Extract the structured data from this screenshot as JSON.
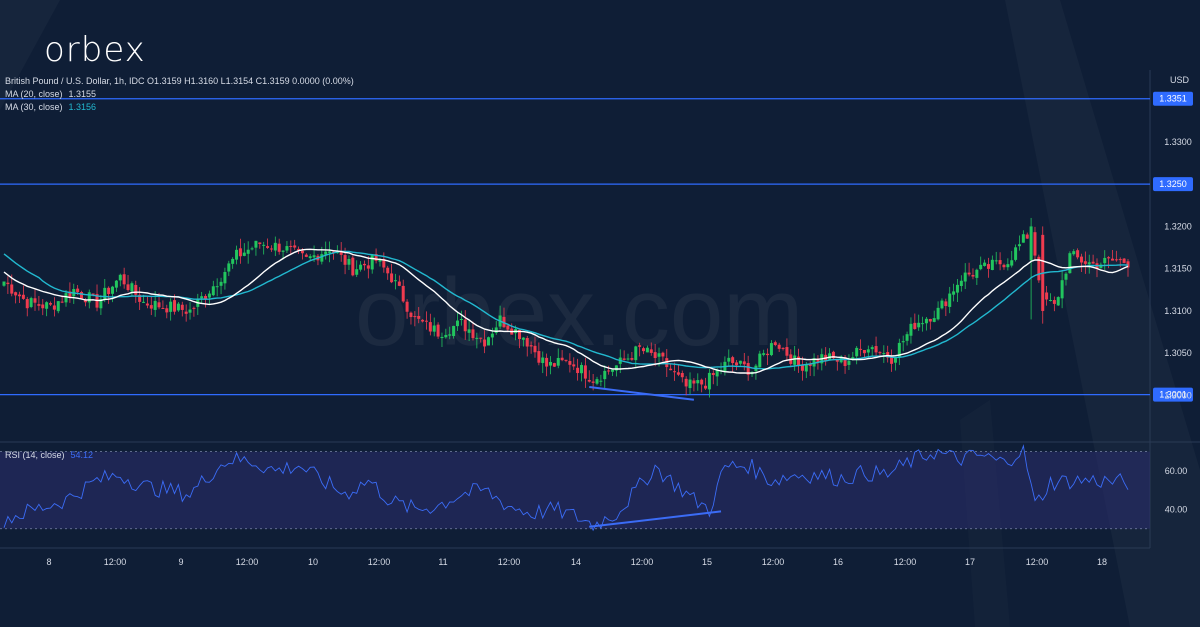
{
  "brand": {
    "logo_text": "orbex",
    "watermark": "orbex.com"
  },
  "colors": {
    "background": "#0f1e36",
    "panel": "#0f1e36",
    "up": "#22c55e",
    "down": "#ef3b4f",
    "ma20": "#ffffff",
    "ma30": "#22b8cf",
    "level_line": "#2f6bff",
    "rsi_line": "#3b6cf6",
    "rsi_band": "#2b2d6e"
  },
  "header": {
    "symbol_line": "British Pound / U.S. Dollar, 1h, IDC  O1.3159  H1.3160  L1.3154  C1.3159  0.0000 (0.00%)",
    "ma20_label": "MA (20, close)",
    "ma20_value": "1.3155",
    "ma30_label": "MA (30, close)",
    "ma30_value": "1.3156"
  },
  "chart_data": [
    {
      "type": "candlestick",
      "title": "British Pound / U.S. Dollar, 1h, IDC",
      "currency_label": "USD",
      "ylim": [
        1.2945,
        1.3385
      ],
      "y_ticks": [
        1.3,
        1.305,
        1.31,
        1.315,
        1.32,
        1.33
      ],
      "y_tick_labels": [
        "1.3000",
        "1.3050",
        "1.3100",
        "1.3150",
        "1.3200",
        "1.3300"
      ],
      "x_tick_labels": [
        "8",
        "12:00",
        "9",
        "12:00",
        "10",
        "12:00",
        "11",
        "12:00",
        "14",
        "12:00",
        "15",
        "12:00",
        "16",
        "12:00",
        "17",
        "12:00",
        "18"
      ],
      "levels": [
        {
          "value": 1.3351,
          "label": "1.3351"
        },
        {
          "value": 1.325,
          "label": "1.3250"
        },
        {
          "value": 1.3001,
          "label": "1.3001"
        }
      ],
      "close_anchors": [
        [
          0,
          1.3135
        ],
        [
          6,
          1.311
        ],
        [
          12,
          1.3105
        ],
        [
          18,
          1.3125
        ],
        [
          24,
          1.311
        ],
        [
          30,
          1.314
        ],
        [
          36,
          1.311
        ],
        [
          42,
          1.3105
        ],
        [
          48,
          1.31
        ],
        [
          54,
          1.313
        ],
        [
          60,
          1.3165
        ],
        [
          66,
          1.318
        ],
        [
          72,
          1.3175
        ],
        [
          78,
          1.316
        ],
        [
          84,
          1.3175
        ],
        [
          90,
          1.315
        ],
        [
          96,
          1.316
        ],
        [
          100,
          1.314
        ],
        [
          106,
          1.309
        ],
        [
          112,
          1.3075
        ],
        [
          118,
          1.3085
        ],
        [
          124,
          1.3065
        ],
        [
          128,
          1.309
        ],
        [
          134,
          1.307
        ],
        [
          140,
          1.3035
        ],
        [
          146,
          1.304
        ],
        [
          152,
          1.302
        ],
        [
          158,
          1.3035
        ],
        [
          164,
          1.3055
        ],
        [
          170,
          1.304
        ],
        [
          176,
          1.301
        ],
        [
          181,
          1.3015
        ],
        [
          187,
          1.304
        ],
        [
          193,
          1.303
        ],
        [
          199,
          1.3065
        ],
        [
          205,
          1.3035
        ],
        [
          211,
          1.3045
        ],
        [
          217,
          1.304
        ],
        [
          223,
          1.306
        ],
        [
          229,
          1.3045
        ],
        [
          235,
          1.3085
        ],
        [
          241,
          1.31
        ],
        [
          247,
          1.314
        ],
        [
          253,
          1.315
        ],
        [
          259,
          1.316
        ],
        [
          265,
          1.3195
        ],
        [
          268,
          1.3115
        ],
        [
          271,
          1.3105
        ],
        [
          275,
          1.3165
        ],
        [
          281,
          1.3155
        ],
        [
          287,
          1.316
        ],
        [
          290,
          1.3158
        ]
      ],
      "spikes": [
        [
          265,
          1.321,
          1.309
        ],
        [
          268,
          1.32,
          1.3085
        ]
      ],
      "series": [
        {
          "name": "MA (20, close)",
          "value": 1.3155
        },
        {
          "name": "MA (30, close)",
          "value": 1.3156
        }
      ],
      "trendline": {
        "from": [
          151,
          1.301
        ],
        "to": [
          178,
          1.2995
        ]
      }
    },
    {
      "type": "line",
      "title": "RSI (14, close)",
      "value_label": "54.12",
      "ylim": [
        20,
        75
      ],
      "y_ticks": [
        40,
        60
      ],
      "y_tick_labels": [
        "40.00",
        "60.00"
      ],
      "band": [
        30,
        70
      ],
      "anchors": [
        [
          0,
          35
        ],
        [
          8,
          40
        ],
        [
          16,
          45
        ],
        [
          24,
          55
        ],
        [
          30,
          58
        ],
        [
          36,
          52
        ],
        [
          42,
          50
        ],
        [
          48,
          48
        ],
        [
          54,
          60
        ],
        [
          58,
          66
        ],
        [
          64,
          65
        ],
        [
          70,
          60
        ],
        [
          76,
          63
        ],
        [
          82,
          55
        ],
        [
          88,
          48
        ],
        [
          94,
          55
        ],
        [
          100,
          44
        ],
        [
          106,
          40
        ],
        [
          112,
          42
        ],
        [
          118,
          48
        ],
        [
          124,
          50
        ],
        [
          130,
          42
        ],
        [
          136,
          38
        ],
        [
          142,
          40
        ],
        [
          148,
          36
        ],
        [
          152,
          32
        ],
        [
          158,
          38
        ],
        [
          164,
          52
        ],
        [
          168,
          62
        ],
        [
          172,
          55
        ],
        [
          178,
          45
        ],
        [
          182,
          40
        ],
        [
          186,
          62
        ],
        [
          192,
          63
        ],
        [
          198,
          55
        ],
        [
          204,
          58
        ],
        [
          210,
          58
        ],
        [
          216,
          56
        ],
        [
          222,
          59
        ],
        [
          228,
          58
        ],
        [
          234,
          65
        ],
        [
          240,
          70
        ],
        [
          246,
          66
        ],
        [
          252,
          68
        ],
        [
          258,
          64
        ],
        [
          263,
          72
        ],
        [
          266,
          42
        ],
        [
          270,
          54
        ],
        [
          276,
          55
        ],
        [
          282,
          55
        ],
        [
          290,
          54
        ]
      ],
      "trendline": {
        "from": [
          151,
          31
        ],
        "to": [
          185,
          39
        ]
      }
    }
  ]
}
